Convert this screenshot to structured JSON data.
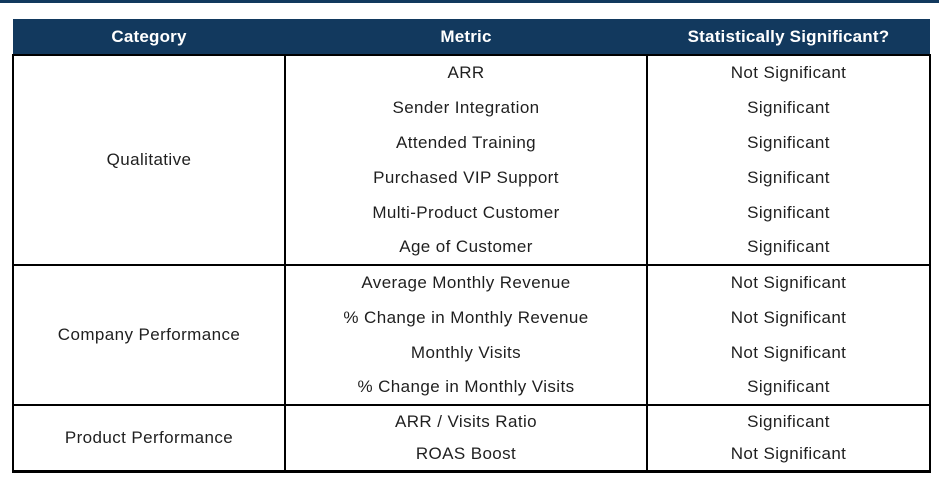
{
  "chart_data": {
    "type": "table",
    "columns": [
      "Category",
      "Metric",
      "Statistically Significant?"
    ],
    "rows": [
      [
        "Qualitative",
        "ARR",
        "Not Significant"
      ],
      [
        "Qualitative",
        "Sender Integration",
        "Significant"
      ],
      [
        "Qualitative",
        "Attended Training",
        "Significant"
      ],
      [
        "Qualitative",
        "Purchased VIP Support",
        "Significant"
      ],
      [
        "Qualitative",
        "Multi-Product Customer",
        "Significant"
      ],
      [
        "Qualitative",
        "Age of Customer",
        "Significant"
      ],
      [
        "Company Performance",
        "Average Monthly Revenue",
        "Not Significant"
      ],
      [
        "Company Performance",
        "% Change in Monthly Revenue",
        "Not Significant"
      ],
      [
        "Company Performance",
        "Monthly Visits",
        "Not Significant"
      ],
      [
        "Company Performance",
        "% Change in Monthly Visits",
        "Significant"
      ],
      [
        "Product Performance",
        "ARR / Visits Ratio",
        "Significant"
      ],
      [
        "Product Performance",
        "ROAS Boost",
        "Not Significant"
      ]
    ]
  },
  "table": {
    "headers": {
      "category": "Category",
      "metric": "Metric",
      "significance": "Statistically Significant?"
    },
    "sections": [
      {
        "category": "Qualitative",
        "rows": [
          {
            "metric": "ARR",
            "significance": "Not Significant"
          },
          {
            "metric": "Sender Integration",
            "significance": "Significant"
          },
          {
            "metric": "Attended Training",
            "significance": "Significant"
          },
          {
            "metric": "Purchased VIP Support",
            "significance": "Significant"
          },
          {
            "metric": "Multi-Product Customer",
            "significance": "Significant"
          },
          {
            "metric": "Age of Customer",
            "significance": "Significant"
          }
        ]
      },
      {
        "category": "Company Performance",
        "rows": [
          {
            "metric": "Average Monthly Revenue",
            "significance": "Not Significant"
          },
          {
            "metric": "% Change in Monthly Revenue",
            "significance": "Not Significant"
          },
          {
            "metric": "Monthly Visits",
            "significance": "Not Significant"
          },
          {
            "metric": "% Change in Monthly Visits",
            "significance": "Significant"
          }
        ]
      },
      {
        "category": "Product Performance",
        "rows": [
          {
            "metric": "ARR / Visits Ratio",
            "significance": "Significant"
          },
          {
            "metric": "ROAS Boost",
            "significance": "Not Significant"
          }
        ]
      }
    ]
  },
  "colors": {
    "header_bg": "#12395E",
    "header_text": "#FFFFFF",
    "body_text": "#1F1F1F",
    "border": "#000000",
    "top_rule": "#12395E"
  }
}
